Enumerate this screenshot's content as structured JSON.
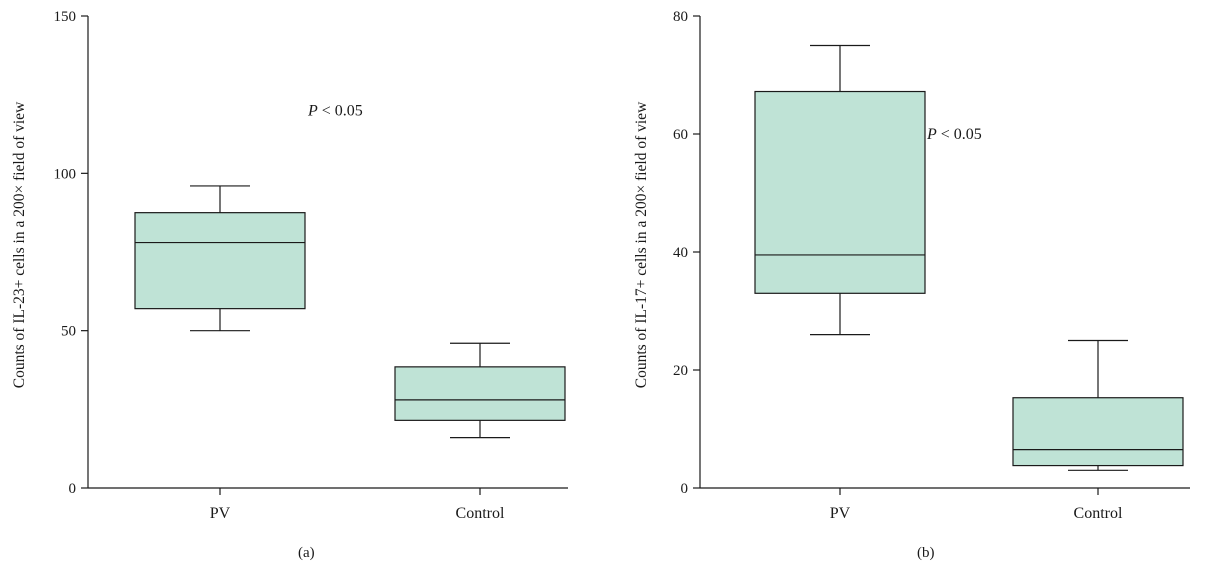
{
  "theme": {
    "box_fill": "#bfe3d6",
    "stroke": "#1a1a1a"
  },
  "chart_data": [
    {
      "type": "box",
      "panel_label": "(a)",
      "ylabel": "Counts of IL-23+ cells in a 200× field of view",
      "xlabel": "",
      "ylim": [
        0,
        150
      ],
      "yticks": [
        0,
        50,
        100,
        150
      ],
      "categories": [
        "PV",
        "Control"
      ],
      "boxes": [
        {
          "category": "PV",
          "min": 50,
          "q1": 57,
          "median": 78,
          "q3": 87.5,
          "max": 96
        },
        {
          "category": "Control",
          "min": 16,
          "q1": 21.5,
          "median": 28,
          "q3": 38.5,
          "max": 46
        }
      ],
      "annotation": {
        "italic": "P",
        "text": " < 0.05",
        "x": 1.5,
        "y": 120
      },
      "grid": false
    },
    {
      "type": "box",
      "panel_label": "(b)",
      "ylabel": "Counts of IL-17+ cells in a 200× field of view",
      "xlabel": "",
      "ylim": [
        0,
        80
      ],
      "yticks": [
        0,
        20,
        40,
        60,
        80
      ],
      "categories": [
        "PV",
        "Control"
      ],
      "boxes": [
        {
          "category": "PV",
          "min": 26,
          "q1": 33,
          "median": 39.5,
          "q3": 67.2,
          "max": 75
        },
        {
          "category": "Control",
          "min": 3,
          "q1": 3.8,
          "median": 6.5,
          "q3": 15.3,
          "max": 25
        }
      ],
      "annotation": {
        "italic": "P",
        "text": " < 0.05",
        "x": 1.5,
        "y": 60
      },
      "grid": false
    }
  ]
}
